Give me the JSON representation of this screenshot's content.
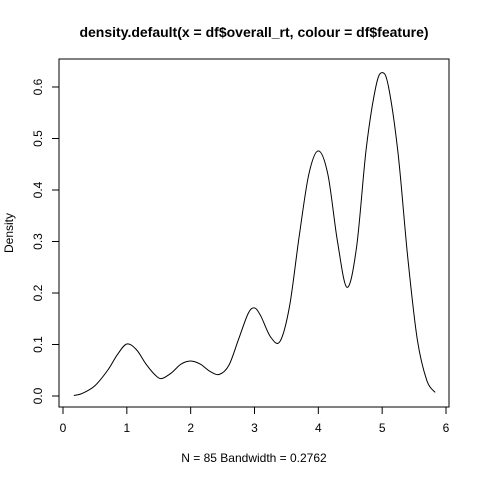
{
  "chart_data": {
    "type": "line",
    "title": "density.default(x = df$overall_rt, colour = df$feature)",
    "xlabel": "N = 85   Bandwidth = 0.2762",
    "ylabel": "Density",
    "xlim": [
      0,
      6
    ],
    "ylim": [
      0,
      0.65
    ],
    "x_ticks": [
      0,
      1,
      2,
      3,
      4,
      5,
      6
    ],
    "y_ticks": [
      0.0,
      0.1,
      0.2,
      0.3,
      0.4,
      0.5,
      0.6
    ],
    "x_tick_labels": [
      "0",
      "1",
      "2",
      "3",
      "4",
      "5",
      "6"
    ],
    "y_tick_labels": [
      "0.0",
      "0.1",
      "0.2",
      "0.3",
      "0.4",
      "0.5",
      "0.6"
    ],
    "grid": false,
    "legend": "none",
    "series": [
      {
        "x": [
          0.17,
          0.3,
          0.5,
          0.7,
          0.85,
          1.0,
          1.15,
          1.3,
          1.45,
          1.55,
          1.7,
          1.85,
          2.0,
          2.15,
          2.3,
          2.45,
          2.6,
          2.75,
          2.9,
          3.0,
          3.1,
          3.25,
          3.4,
          3.55,
          3.7,
          3.85,
          4.0,
          4.15,
          4.3,
          4.45,
          4.6,
          4.75,
          4.9,
          5.0,
          5.1,
          5.25,
          5.4,
          5.55,
          5.7,
          5.83
        ],
        "y": [
          0.001,
          0.005,
          0.02,
          0.05,
          0.08,
          0.101,
          0.09,
          0.062,
          0.04,
          0.034,
          0.045,
          0.062,
          0.068,
          0.062,
          0.048,
          0.042,
          0.06,
          0.11,
          0.16,
          0.171,
          0.155,
          0.115,
          0.106,
          0.175,
          0.31,
          0.43,
          0.476,
          0.43,
          0.3,
          0.211,
          0.29,
          0.48,
          0.6,
          0.628,
          0.6,
          0.47,
          0.27,
          0.11,
          0.03,
          0.007
        ]
      }
    ]
  }
}
